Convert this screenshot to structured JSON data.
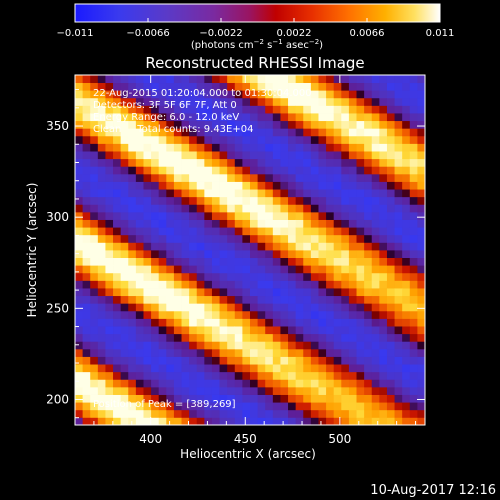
{
  "chart_data": {
    "type": "heatmap",
    "title": "Reconstructed RHESSI Image",
    "xlabel": "Heliocentric X (arcsec)",
    "ylabel": "Heliocentric Y (arcsec)",
    "xlim": [
      360,
      545
    ],
    "ylim": [
      186,
      378
    ],
    "x_ticks": [
      400,
      450,
      500
    ],
    "y_ticks": [
      200,
      250,
      300,
      350
    ],
    "colorbar": {
      "range": [
        -0.011,
        0.011
      ],
      "ticks": [
        "-0.011",
        "-0.0066",
        "-0.0022",
        "0.0022",
        "0.0066",
        "0.011"
      ],
      "unit_label": "(photons cm^-2 s^-1 asec^-2)",
      "colors": [
        "#1a1aff",
        "#3a3aee",
        "#5a3ac8",
        "#7a2aa0",
        "#9a1460",
        "#c00000",
        "#e83000",
        "#ff7000",
        "#ffb000",
        "#ffe060",
        "#ffffff"
      ]
    },
    "annotations": [
      "22-Aug-2015 01:20:04.000 to 01:30:04.000",
      "Detectors: 3F 5F 6F 7F, Att 0",
      "Energy Range: 6.0 - 12.0 keV",
      "Clean     Total counts: 9.43E+04"
    ],
    "peak_label": "Position of Peak = [389,269]",
    "peak": [
      389,
      269
    ],
    "stripes_description_values": {
      "bright_band_offsets_arcsec": [
        0,
        155
      ],
      "band_slope": -0.62,
      "band_period_arcsec": 77
    }
  },
  "footer": {
    "date": "10-Aug-2017 12:16"
  }
}
